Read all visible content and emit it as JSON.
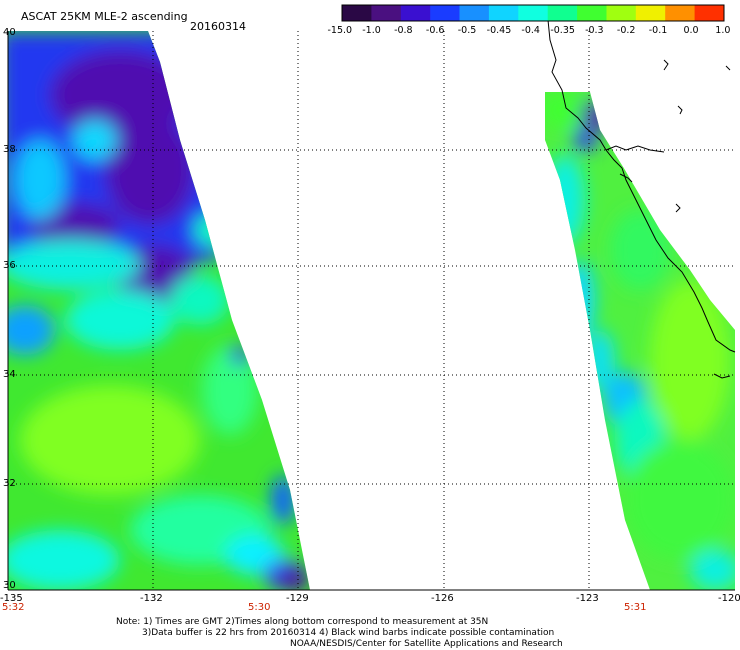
{
  "header": {
    "title": "ASCAT 25KM MLE-2 ascending",
    "date": "20160314"
  },
  "colorbar": {
    "labels": [
      "-15.0",
      "-1.0",
      "-0.8",
      "-0.6",
      "-0.5",
      "-0.45",
      "-0.4",
      "-0.35",
      "-0.3",
      "-0.2",
      "-0.1",
      "0.0",
      "1.0"
    ],
    "colors": [
      "#2a0845",
      "#4a1080",
      "#3a10d0",
      "#1a3cff",
      "#1890ff",
      "#10d4ff",
      "#10ffe0",
      "#10ff90",
      "#40ff30",
      "#a0ff10",
      "#f0f000",
      "#ff9000",
      "#ff3000"
    ]
  },
  "axes": {
    "lon_ticks": [
      "-135",
      "-132",
      "-129",
      "-126",
      "-123",
      "-120"
    ],
    "lat_ticks": [
      "40",
      "38",
      "36",
      "34",
      "32",
      "30"
    ],
    "lon_range": [
      -135,
      -120
    ],
    "lat_range": [
      30,
      40
    ]
  },
  "times": {
    "left": "5:32",
    "middle": "5:30",
    "right": "5:31"
  },
  "notes": {
    "line1": "Note: 1) Times are GMT 2)Times along bottom correspond to measurement at 35N",
    "line2": "3)Data buffer is 22 hrs from 20160314 4) Black wind barbs indicate possible contamination",
    "line3": "NOAA/NESDIS/Center for Satellite Applications and Research"
  }
}
